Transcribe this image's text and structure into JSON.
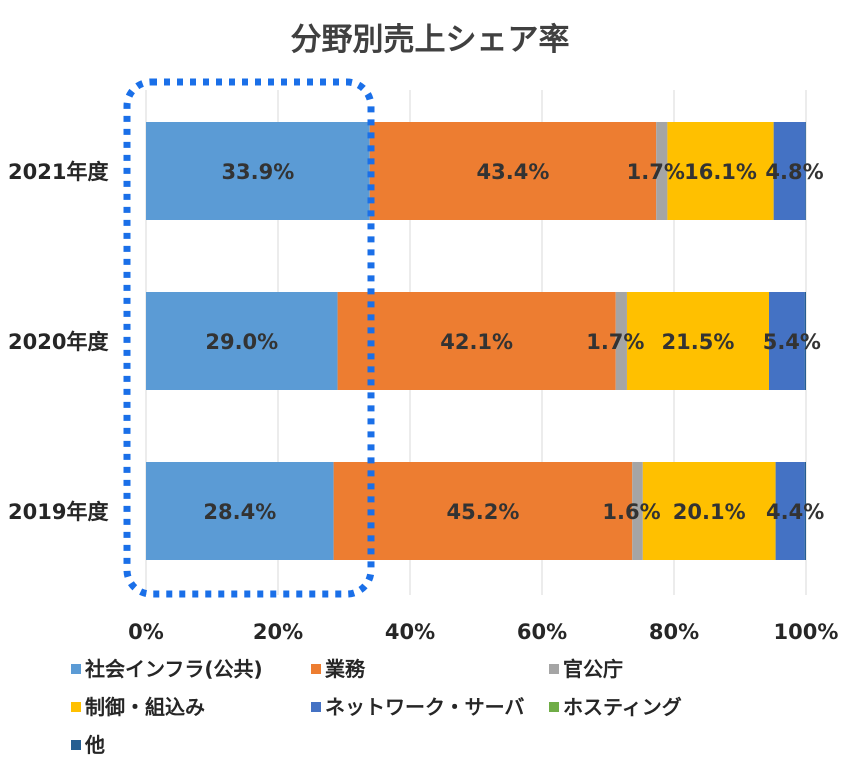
{
  "chart_data": {
    "type": "bar",
    "orientation": "horizontal",
    "stacked": "percent",
    "title": "分野別売上シェア率",
    "categories": [
      "2021年度",
      "2020年度",
      "2019年度"
    ],
    "series": [
      {
        "name": "社会インフラ(公共)",
        "color": "#5B9BD5",
        "values": [
          33.9,
          29.0,
          28.4
        ]
      },
      {
        "name": "業務",
        "color": "#ED7D31",
        "values": [
          43.4,
          42.1,
          45.2
        ]
      },
      {
        "name": "官公庁",
        "color": "#A5A5A5",
        "values": [
          1.7,
          1.7,
          1.6
        ]
      },
      {
        "name": "制御・組込み",
        "color": "#FFC000",
        "values": [
          16.1,
          21.5,
          20.1
        ]
      },
      {
        "name": "ネットワーク・サーバ",
        "color": "#4472C4",
        "values": [
          4.8,
          5.4,
          4.4
        ]
      },
      {
        "name": "ホスティング",
        "color": "#70AD47",
        "values": [
          0,
          0,
          0
        ]
      },
      {
        "name": "他",
        "color": "#255E91",
        "values": [
          0.1,
          0.2,
          0.2
        ]
      }
    ],
    "data_labels": [
      [
        "33.9%",
        "43.4%",
        "1.7%",
        "16.1%",
        "4.8%"
      ],
      [
        "29.0%",
        "42.1%",
        "1.7%",
        "21.5%",
        "5.4%"
      ],
      [
        "28.4%",
        "45.2%",
        "1.6%",
        "20.1%",
        "4.4%"
      ]
    ],
    "xticks": [
      "0%",
      "20%",
      "40%",
      "60%",
      "80%",
      "100%"
    ],
    "xlim": [
      0,
      100
    ],
    "grid": true,
    "legend": "bottom",
    "highlight": {
      "color": "#1A6FE8",
      "style": "dotted",
      "target": "社会インフラ(公共)"
    }
  }
}
